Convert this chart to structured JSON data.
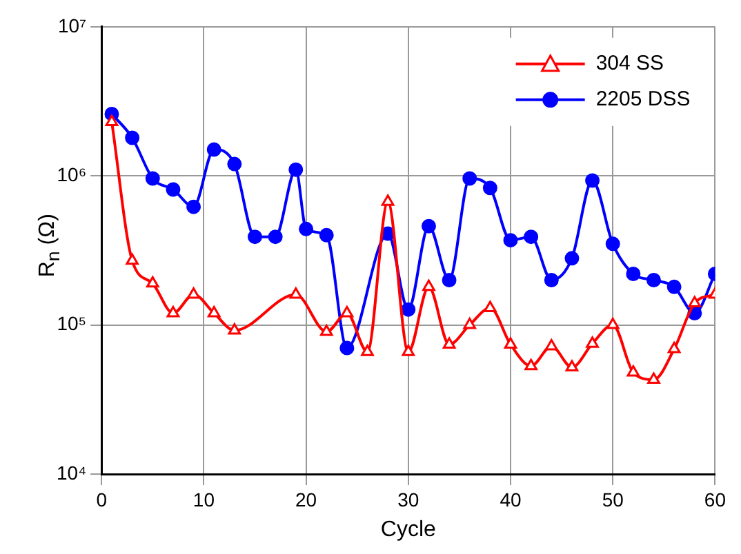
{
  "chart_data": {
    "type": "line",
    "xlabel": "Cycle",
    "ylabel": "R$_{n}$ (Ω)",
    "log": "y",
    "grid": true,
    "legend": "top right",
    "line_style": "solid",
    "xlim": [
      0,
      60
    ],
    "xticks": [
      0,
      10,
      20,
      30,
      40,
      50,
      60
    ],
    "ylim": [
      10000,
      10000000
    ],
    "yticks": [
      {
        "value": 10000,
        "label": "10⁴"
      },
      {
        "value": 100000,
        "label": "10⁵"
      },
      {
        "value": 1000000,
        "label": "10⁶"
      },
      {
        "value": 10000000,
        "label": "10⁷"
      }
    ],
    "series": [
      {
        "name": "304 SS",
        "color": "#ff0000",
        "marker": "triangle",
        "x": [
          1,
          3,
          5,
          7,
          9,
          11,
          13,
          19,
          22,
          24,
          26,
          28,
          30,
          32,
          34,
          36,
          38,
          40,
          42,
          44,
          46,
          48,
          50,
          52,
          54,
          56,
          58,
          60
        ],
        "values": [
          2300000,
          270000,
          190000,
          120000,
          160000,
          120000,
          92000,
          160000,
          90000,
          120000,
          66000,
          670000,
          66000,
          180000,
          74000,
          100000,
          130000,
          74000,
          53000,
          72000,
          52000,
          75000,
          100000,
          48000,
          43000,
          69000,
          140000,
          160000
        ]
      },
      {
        "name": "2205 DSS",
        "color": "#0000ff",
        "marker": "circle",
        "x": [
          1,
          3,
          5,
          7,
          9,
          11,
          13,
          15,
          17,
          19,
          20,
          22,
          24,
          28,
          30,
          32,
          34,
          36,
          38,
          40,
          42,
          44,
          46,
          48,
          50,
          52,
          54,
          56,
          58,
          60
        ],
        "values": [
          2600000,
          1800000,
          960000,
          810000,
          620000,
          1500000,
          1200000,
          390000,
          390000,
          1100000,
          440000,
          400000,
          70000,
          410000,
          127000,
          460000,
          200000,
          960000,
          830000,
          370000,
          390000,
          200000,
          280000,
          930000,
          350000,
          220000,
          200000,
          180000,
          120000,
          220000
        ]
      }
    ]
  }
}
